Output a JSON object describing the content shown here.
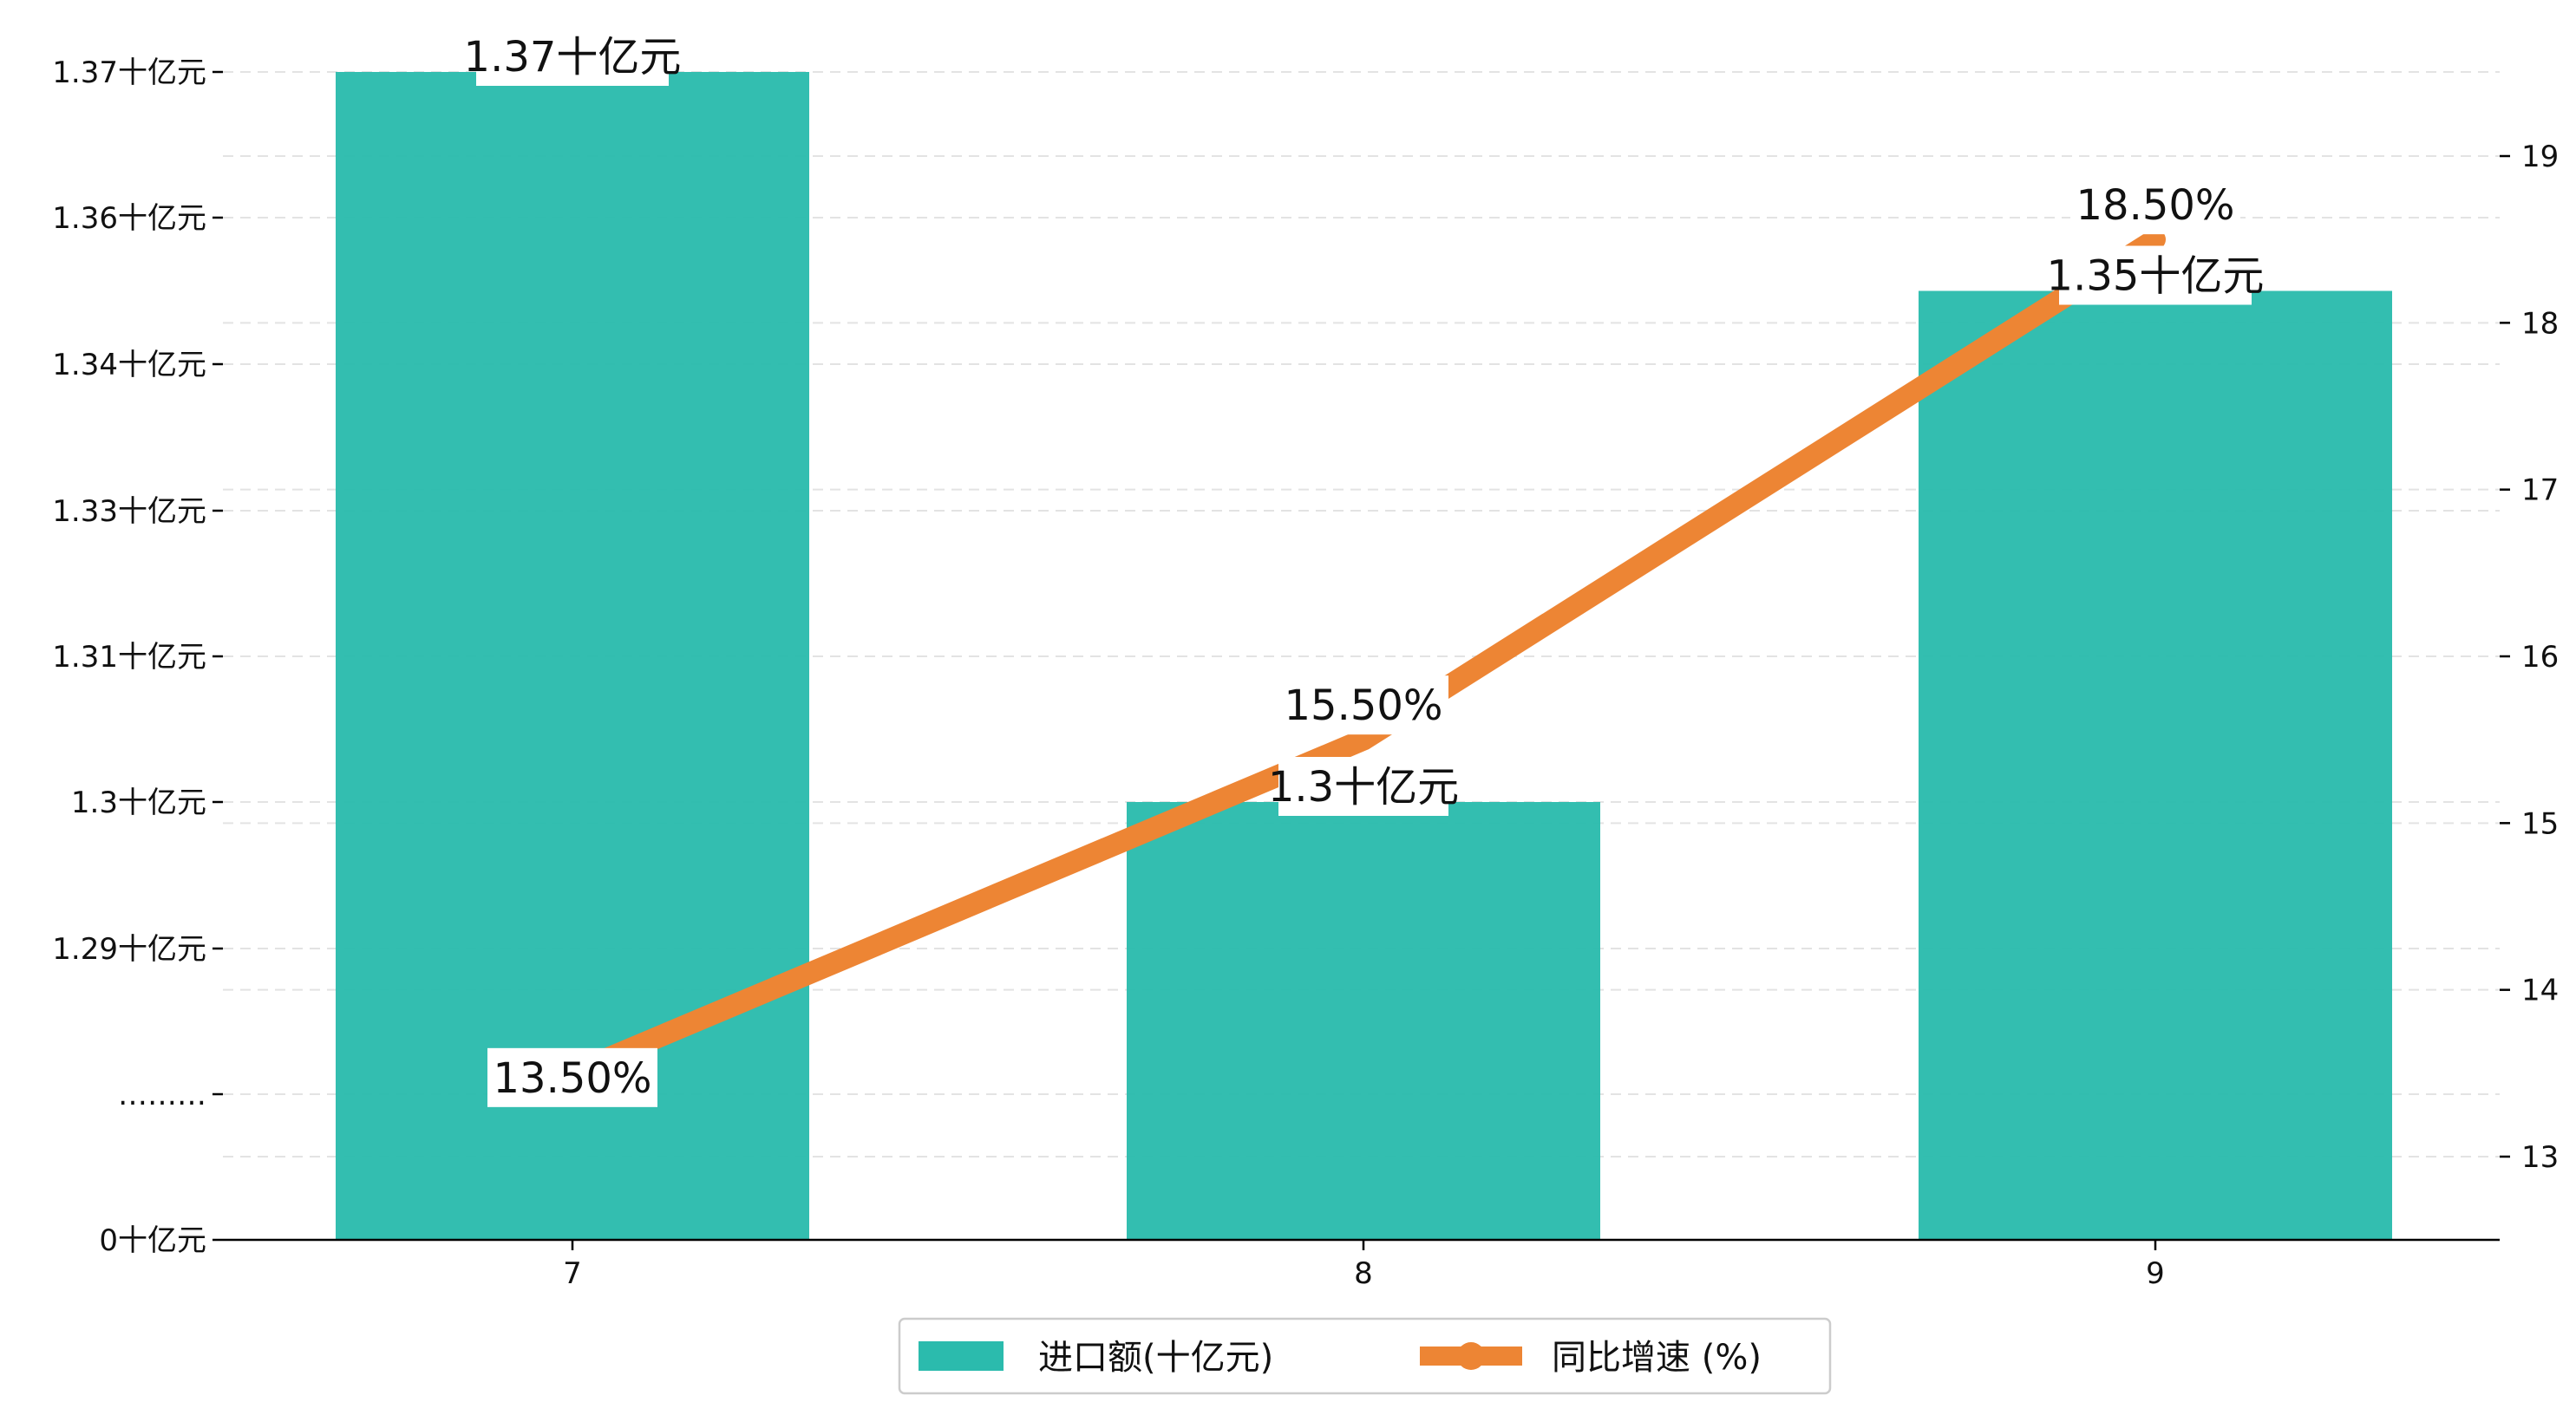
{
  "chart_data": {
    "type": "bar",
    "categories": [
      "7",
      "8",
      "9"
    ],
    "series": [
      {
        "name": "进口额(十亿元)",
        "type": "bar",
        "axis": "left",
        "values": [
          1.37,
          1.3,
          1.35
        ],
        "value_labels": [
          "1.37十亿元",
          "1.3十亿元",
          "1.35十亿元"
        ],
        "color": "#2bbbad"
      },
      {
        "name": "同比增速 (%)",
        "type": "line",
        "axis": "right",
        "values": [
          13.5,
          15.5,
          18.5
        ],
        "value_labels": [
          "13.50%",
          "15.50%",
          "18.50%"
        ],
        "color": "#ed8534"
      }
    ],
    "left_axis": {
      "ticks": [
        {
          "value": 0,
          "label": "0十亿元"
        },
        {
          "value": 1.28,
          "label": "………"
        },
        {
          "value": 1.29,
          "label": "1.29十亿元"
        },
        {
          "value": 1.3,
          "label": "1.3十亿元"
        },
        {
          "value": 1.31,
          "label": "1.31十亿元"
        },
        {
          "value": 1.33,
          "label": "1.33十亿元"
        },
        {
          "value": 1.34,
          "label": "1.34十亿元"
        },
        {
          "value": 1.36,
          "label": "1.36十亿元"
        },
        {
          "value": 1.37,
          "label": "1.37十亿元"
        }
      ],
      "broken_axis": true
    },
    "right_axis": {
      "ticks": [
        13,
        14,
        15,
        16,
        17,
        18,
        19
      ],
      "ylim": [
        12.5,
        19.6
      ]
    },
    "grid": true,
    "legend": {
      "position": "bottom-center",
      "entries": [
        "进口额(十亿元)",
        "同比增速 (%)"
      ]
    },
    "title": "",
    "xlabel": "",
    "ylabel": ""
  }
}
